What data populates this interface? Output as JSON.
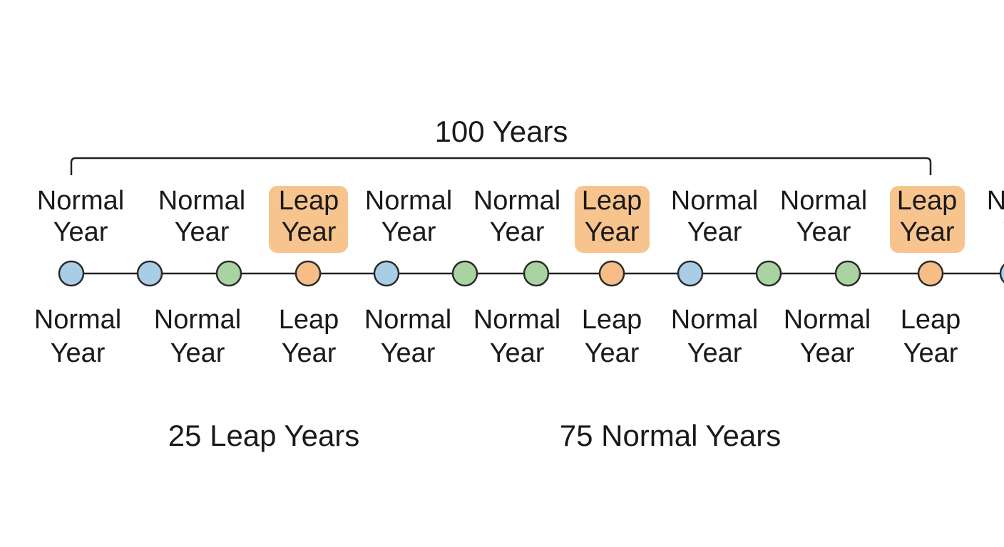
{
  "title": "100 Years",
  "top_labels": [
    [
      "Normal",
      "Year"
    ],
    [
      "Normal",
      "Year"
    ],
    [
      "Leap",
      "Year"
    ],
    [
      "Normal",
      "Year"
    ],
    [
      "Normal",
      "Year"
    ],
    [
      "Leap",
      "Year"
    ],
    [
      "Normal",
      "Year"
    ],
    [
      "Normal",
      "Year"
    ],
    [
      "Leap",
      "Year"
    ],
    [
      "Normal",
      "Year"
    ]
  ],
  "bottom_labels": [
    [
      "Normal",
      "Year"
    ],
    [
      "Normal",
      "Year"
    ],
    [
      "Leap",
      "Year"
    ],
    [
      "Normal",
      "Year"
    ],
    [
      "Normal",
      "Year"
    ],
    [
      "Leap",
      "Year"
    ],
    [
      "Normal",
      "Year"
    ],
    [
      "Normal",
      "Year"
    ],
    [
      "Leap",
      "Year"
    ]
  ],
  "summary": [
    "25 Leap Years",
    "75 Normal Years"
  ]
}
